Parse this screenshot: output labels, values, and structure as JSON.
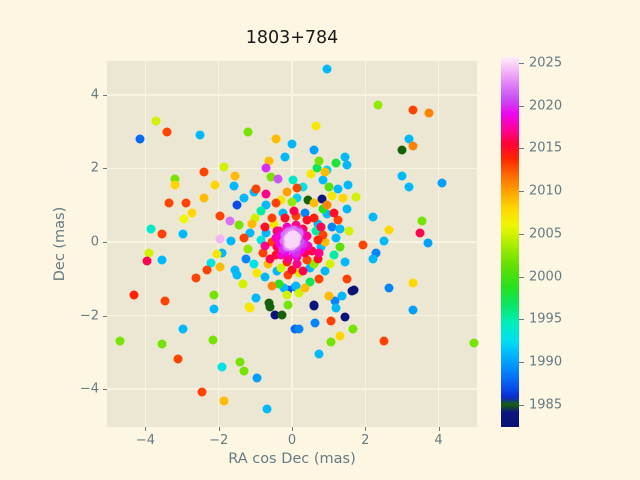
{
  "figure": {
    "title": "1803+784",
    "background": "#fdf6e3",
    "axes_background": "#ece7d2",
    "grid_color": "#f9f3e2",
    "text_color": "#657b83",
    "title_color": "#1a1a1a",
    "tick_color": "#657b83"
  },
  "chart_data": {
    "type": "scatter",
    "title": "1803+784",
    "xlabel": "RA cos Dec (mas)",
    "ylabel": "Dec (mas)",
    "xlim": [
      -5.05,
      5.05
    ],
    "ylim": [
      -5.03,
      4.92
    ],
    "xticks": [
      -4,
      -2,
      0,
      2,
      4
    ],
    "yticks": [
      -4,
      -2,
      0,
      2,
      4
    ],
    "grid": true,
    "marker_size_px": 9,
    "points_columns": [
      "ra_cos_dec_mas",
      "dec_mas",
      "epoch_year"
    ],
    "colorbar": {
      "vmin": 1982.4,
      "vmax": 2025.7,
      "ticks": [
        1985,
        1990,
        1995,
        2000,
        2005,
        2010,
        2015,
        2020,
        2025
      ],
      "stops": [
        {
          "t": 0.0,
          "c": "#0a1173"
        },
        {
          "t": 0.04,
          "c": "#0c1480"
        },
        {
          "t": 0.06,
          "c": "#17600a"
        },
        {
          "t": 0.08,
          "c": "#0a2acc"
        },
        {
          "t": 0.1,
          "c": "#0846e8"
        },
        {
          "t": 0.14,
          "c": "#0677fa"
        },
        {
          "t": 0.19,
          "c": "#00b0ff"
        },
        {
          "t": 0.235,
          "c": "#00e0f0"
        },
        {
          "t": 0.28,
          "c": "#00eebb"
        },
        {
          "t": 0.33,
          "c": "#0ae665"
        },
        {
          "t": 0.38,
          "c": "#28e01e"
        },
        {
          "t": 0.44,
          "c": "#66e000"
        },
        {
          "t": 0.5,
          "c": "#b4ee00"
        },
        {
          "t": 0.545,
          "c": "#eef600"
        },
        {
          "t": 0.59,
          "c": "#ffd800"
        },
        {
          "t": 0.635,
          "c": "#ffa300"
        },
        {
          "t": 0.68,
          "c": "#ff6a00"
        },
        {
          "t": 0.725,
          "c": "#ff2600"
        },
        {
          "t": 0.765,
          "c": "#ff0336"
        },
        {
          "t": 0.805,
          "c": "#ff0398"
        },
        {
          "t": 0.845,
          "c": "#ee04ee"
        },
        {
          "t": 0.885,
          "c": "#c94cf2"
        },
        {
          "t": 0.925,
          "c": "#dd7ef7"
        },
        {
          "t": 0.962,
          "c": "#f3b6f6"
        },
        {
          "t": 1.0,
          "c": "#fdeffb"
        }
      ]
    },
    "points": [
      [
        -3.7,
        3.3,
        2005
      ],
      [
        -3.4,
        3.0,
        2013
      ],
      [
        -4.15,
        2.8,
        1988
      ],
      [
        -2.5,
        2.9,
        1991
      ],
      [
        -1.2,
        3.0,
        2002
      ],
      [
        -0.45,
        2.8,
        2009
      ],
      [
        0.0,
        2.67,
        1991
      ],
      [
        -0.2,
        2.3,
        1991
      ],
      [
        -0.62,
        2.2,
        2009
      ],
      [
        -0.72,
        2.0,
        2020
      ],
      [
        -2.4,
        1.9,
        2013
      ],
      [
        -1.85,
        2.05,
        2005
      ],
      [
        -1.55,
        1.8,
        2009
      ],
      [
        -3.2,
        1.7,
        2002
      ],
      [
        0.95,
        4.7,
        1991
      ],
      [
        2.35,
        3.73,
        2003
      ],
      [
        3.3,
        3.6,
        2013
      ],
      [
        3.75,
        3.5,
        2011
      ],
      [
        0.65,
        3.15,
        2007
      ],
      [
        3.2,
        2.8,
        1991
      ],
      [
        3.0,
        2.5,
        1985
      ],
      [
        3.3,
        2.6,
        2011
      ],
      [
        0.6,
        2.5,
        1990
      ],
      [
        0.75,
        2.2,
        2002
      ],
      [
        1.2,
        2.15,
        1998
      ],
      [
        1.5,
        2.1,
        1991
      ],
      [
        1.45,
        2.3,
        1991
      ],
      [
        0.52,
        1.84,
        2007
      ],
      [
        0.9,
        1.9,
        2009
      ],
      [
        0.95,
        1.96,
        1992
      ],
      [
        0.68,
        2.01,
        1997
      ],
      [
        0.85,
        1.69,
        1991
      ],
      [
        3.0,
        1.8,
        1991
      ],
      [
        4.1,
        1.6,
        1990
      ],
      [
        -3.2,
        1.55,
        2008
      ],
      [
        -2.1,
        1.55,
        2008
      ],
      [
        -3.37,
        1.05,
        2013
      ],
      [
        -2.9,
        1.07,
        2013
      ],
      [
        -2.4,
        1.2,
        2009
      ],
      [
        -2.95,
        0.62,
        2006
      ],
      [
        -2.74,
        0.78,
        2008
      ],
      [
        -1.97,
        0.7,
        2013
      ],
      [
        -1.7,
        0.57,
        2022
      ],
      [
        -3.84,
        0.35,
        1994
      ],
      [
        -3.56,
        0.22,
        2013
      ],
      [
        -2.97,
        0.22,
        1991
      ],
      [
        -1.97,
        0.08,
        2024
      ],
      [
        -1.67,
        0.03,
        1991
      ],
      [
        -3.9,
        -0.3,
        2005
      ],
      [
        -3.97,
        -0.52,
        2016
      ],
      [
        -3.56,
        -0.5,
        1991
      ],
      [
        -2.05,
        -0.32,
        2007
      ],
      [
        -1.9,
        -0.3,
        1991
      ],
      [
        -2.2,
        -0.57,
        1993
      ],
      [
        -1.97,
        -0.68,
        2009
      ],
      [
        -2.33,
        -0.77,
        2013
      ],
      [
        -1.56,
        -0.77,
        1991
      ],
      [
        -2.63,
        -0.99,
        2013
      ],
      [
        -4.3,
        -1.45,
        2014
      ],
      [
        -3.47,
        -1.6,
        2013
      ],
      [
        -2.13,
        -1.43,
        2002
      ],
      [
        3.2,
        1.5,
        1991
      ],
      [
        1.75,
        1.22,
        2005
      ],
      [
        2.2,
        0.68,
        1991
      ],
      [
        3.55,
        0.57,
        2002
      ],
      [
        2.65,
        0.33,
        2008
      ],
      [
        3.5,
        0.25,
        2016
      ],
      [
        2.5,
        0.03,
        1991
      ],
      [
        1.95,
        -0.08,
        2013
      ],
      [
        3.7,
        -0.03,
        1990
      ],
      [
        2.3,
        -0.3,
        1989
      ],
      [
        2.2,
        -0.47,
        1991
      ],
      [
        2.65,
        -1.25,
        1989
      ],
      [
        3.3,
        -1.12,
        2008
      ],
      [
        1.7,
        -1.3,
        1983
      ],
      [
        -2.13,
        -1.82,
        1991
      ],
      [
        -1.14,
        -1.8,
        2007
      ],
      [
        -0.6,
        -1.78,
        1985
      ],
      [
        -0.46,
        -1.98,
        1983
      ],
      [
        -0.28,
        -1.98,
        1985
      ],
      [
        0.07,
        -2.37,
        1988
      ],
      [
        -2.98,
        -2.37,
        1991
      ],
      [
        -4.7,
        -2.7,
        2002
      ],
      [
        -3.55,
        -2.78,
        2002
      ],
      [
        -2.16,
        -2.66,
        2002
      ],
      [
        -3.1,
        -3.18,
        2013
      ],
      [
        -1.9,
        -3.4,
        1993
      ],
      [
        -1.42,
        -3.26,
        2002
      ],
      [
        -1.31,
        -3.51,
        2002
      ],
      [
        -0.96,
        -3.7,
        1990
      ],
      [
        -2.46,
        -4.08,
        2013
      ],
      [
        -1.86,
        -4.32,
        2009
      ],
      [
        -0.68,
        -4.54,
        1991
      ],
      [
        0.6,
        -1.75,
        1983
      ],
      [
        1.2,
        -1.8,
        1991
      ],
      [
        3.3,
        -1.85,
        1990
      ],
      [
        1.45,
        -2.05,
        1983
      ],
      [
        1.07,
        -2.15,
        2013
      ],
      [
        0.64,
        -2.2,
        1989
      ],
      [
        0.2,
        -2.37,
        1989
      ],
      [
        1.67,
        -2.37,
        2002
      ],
      [
        1.3,
        -2.55,
        2008
      ],
      [
        1.07,
        -2.72,
        2002
      ],
      [
        2.5,
        -2.7,
        2013
      ],
      [
        4.97,
        -2.75,
        2002
      ],
      [
        0.73,
        -3.05,
        1991
      ],
      [
        -1.58,
        1.52,
        1991
      ],
      [
        -0.38,
        1.71,
        2021
      ],
      [
        -0.57,
        1.77,
        2002
      ],
      [
        -0.98,
        1.44,
        2013
      ],
      [
        -1.31,
        1.2,
        1991
      ],
      [
        -0.71,
        1.3,
        2017
      ],
      [
        0.02,
        1.68,
        1994
      ],
      [
        0.13,
        1.47,
        2013
      ],
      [
        1.26,
        1.44,
        1991
      ],
      [
        1.09,
        1.25,
        2007
      ],
      [
        1.39,
        1.2,
        2008
      ],
      [
        0.82,
        1.17,
        1984
      ],
      [
        1.53,
        1.55,
        1991
      ],
      [
        -0.98,
        -1.52,
        1991
      ],
      [
        -1.17,
        -1.77,
        2005
      ],
      [
        -0.63,
        -1.66,
        1985
      ],
      [
        -0.14,
        -1.44,
        2005
      ],
      [
        -0.11,
        -1.71,
        2002
      ],
      [
        -0.22,
        -1.25,
        1991
      ],
      [
        0.08,
        -1.22,
        1989
      ],
      [
        1.64,
        -1.33,
        1983
      ],
      [
        1.01,
        -1.47,
        2009
      ],
      [
        0.6,
        -1.71,
        1984
      ],
      [
        1.17,
        -1.6,
        1989
      ],
      [
        1.37,
        -1.47,
        1991
      ],
      [
        0.19,
        -1.39,
        2005
      ],
      [
        1.5,
        0.9,
        1991
      ],
      [
        1.55,
        0.3,
        2005
      ],
      [
        1.45,
        -0.55,
        1991
      ],
      [
        1.5,
        -1.0,
        2013
      ],
      [
        -1.5,
        1.0,
        1987
      ],
      [
        -1.45,
        0.45,
        2002
      ],
      [
        -1.5,
        -0.9,
        1991
      ],
      [
        -1.35,
        -1.15,
        2005
      ],
      [
        0.3,
        1.5,
        1993
      ],
      [
        -0.15,
        1.35,
        2010
      ],
      [
        1.0,
        1.5,
        2001
      ],
      [
        -1.05,
        1.35,
        1991
      ],
      [
        0.95,
        0.75,
        1991
      ],
      [
        1.1,
        0.4,
        1989
      ],
      [
        1.2,
        0.1,
        1991
      ],
      [
        1.15,
        -0.35,
        1995
      ],
      [
        0.9,
        -0.8,
        1991
      ],
      [
        0.5,
        -1.1,
        1997
      ],
      [
        0.1,
        -1.2,
        1991
      ],
      [
        -0.35,
        -1.15,
        1999
      ],
      [
        -0.75,
        -0.95,
        1991
      ],
      [
        -1.05,
        -0.6,
        1993
      ],
      [
        -1.2,
        -0.2,
        2003
      ],
      [
        -1.15,
        0.25,
        1991
      ],
      [
        -1.0,
        0.65,
        2005
      ],
      [
        -0.7,
        1.0,
        1991
      ],
      [
        -0.3,
        1.15,
        2007
      ],
      [
        0.15,
        1.2,
        1992
      ],
      [
        0.6,
        1.05,
        2009
      ],
      [
        0.95,
        1.0,
        2011
      ],
      [
        1.25,
        0.6,
        2013
      ],
      [
        1.3,
        -0.15,
        2001
      ],
      [
        1.05,
        -0.6,
        2005
      ],
      [
        0.75,
        -1.0,
        2013
      ],
      [
        0.35,
        -1.25,
        2009
      ],
      [
        -0.1,
        -1.3,
        1987
      ],
      [
        -0.55,
        -1.2,
        2011
      ],
      [
        -0.95,
        -0.85,
        2007
      ],
      [
        -1.25,
        -0.45,
        1989
      ],
      [
        -1.3,
        0.1,
        2013
      ],
      [
        -1.1,
        0.5,
        2009
      ],
      [
        -0.85,
        0.85,
        1995
      ],
      [
        -0.45,
        1.05,
        2013
      ],
      [
        0.0,
        1.1,
        2003
      ],
      [
        0.45,
        1.15,
        1985
      ],
      [
        0.85,
        0.9,
        1999
      ],
      [
        1.15,
        0.8,
        2015
      ],
      [
        1.3,
        0.35,
        1991
      ],
      [
        0.7,
        0.5,
        1991
      ],
      [
        0.85,
        0.2,
        2013
      ],
      [
        0.8,
        -0.15,
        1991
      ],
      [
        0.7,
        -0.45,
        2015
      ],
      [
        0.5,
        -0.7,
        1991
      ],
      [
        0.2,
        -0.85,
        2005
      ],
      [
        -0.1,
        -0.9,
        2013
      ],
      [
        -0.4,
        -0.8,
        1991
      ],
      [
        -0.65,
        -0.6,
        2009
      ],
      [
        -0.8,
        -0.3,
        2013
      ],
      [
        -0.85,
        0.05,
        1993
      ],
      [
        -0.75,
        0.4,
        2015
      ],
      [
        -0.55,
        0.65,
        2013
      ],
      [
        -0.25,
        0.8,
        1991
      ],
      [
        0.05,
        0.85,
        2016
      ],
      [
        0.35,
        0.8,
        1989
      ],
      [
        0.6,
        0.65,
        2014
      ],
      [
        0.8,
        0.4,
        2016
      ],
      [
        0.9,
        0.0,
        2009
      ],
      [
        0.75,
        -0.3,
        2017
      ],
      [
        0.6,
        -0.6,
        2003
      ],
      [
        0.3,
        -0.8,
        2016
      ],
      [
        0.0,
        -0.75,
        2015
      ],
      [
        -0.3,
        -0.7,
        2005
      ],
      [
        -0.6,
        -0.45,
        2016
      ],
      [
        -0.75,
        -0.1,
        2017
      ],
      [
        -0.7,
        0.25,
        1991
      ],
      [
        -0.5,
        0.5,
        2007
      ],
      [
        -0.2,
        0.65,
        2015
      ],
      [
        0.1,
        0.7,
        2013
      ],
      [
        0.4,
        0.6,
        2015
      ],
      [
        0.65,
        0.3,
        1995
      ],
      [
        0.7,
        0.05,
        2014
      ],
      [
        0.55,
        -0.25,
        2016
      ],
      [
        0.4,
        -0.5,
        2013
      ],
      [
        0.15,
        -0.6,
        2017
      ],
      [
        -0.15,
        -0.55,
        2014
      ],
      [
        -0.45,
        -0.35,
        2015
      ],
      [
        -0.55,
        0.0,
        2013
      ],
      [
        -0.4,
        0.3,
        2016
      ],
      [
        0.3,
        0.35,
        2016
      ],
      [
        0.42,
        0.15,
        2017
      ],
      [
        0.45,
        -0.1,
        2018
      ],
      [
        0.35,
        -0.3,
        2016
      ],
      [
        0.15,
        -0.42,
        2018
      ],
      [
        -0.1,
        -0.45,
        2017
      ],
      [
        -0.3,
        -0.35,
        2018
      ],
      [
        -0.42,
        -0.15,
        2016
      ],
      [
        -0.45,
        0.1,
        2018
      ],
      [
        -0.35,
        0.3,
        2017
      ],
      [
        -0.15,
        0.42,
        2018
      ],
      [
        0.1,
        0.45,
        2017
      ],
      [
        0.25,
        0.25,
        2019
      ],
      [
        0.33,
        0.0,
        2019
      ],
      [
        0.25,
        -0.22,
        2019
      ],
      [
        0.05,
        -0.33,
        2019
      ],
      [
        -0.2,
        -0.28,
        2019
      ],
      [
        -0.32,
        -0.05,
        2019
      ],
      [
        -0.28,
        0.18,
        2019
      ],
      [
        -0.08,
        0.32,
        2019
      ],
      [
        0.18,
        0.3,
        2020
      ],
      [
        0.3,
        -0.05,
        2020
      ],
      [
        0.1,
        -0.3,
        2020
      ],
      [
        -0.25,
        -0.2,
        2020
      ],
      [
        -0.05,
        0.3,
        2021
      ],
      [
        0.1,
        0.28,
        2021
      ],
      [
        0.2,
        0.18,
        2021
      ],
      [
        0.22,
        0.0,
        2021
      ],
      [
        0.15,
        -0.15,
        2021
      ],
      [
        0.0,
        -0.2,
        2021
      ],
      [
        -0.15,
        -0.15,
        2022
      ],
      [
        -0.22,
        0.02,
        2022
      ],
      [
        -0.2,
        0.18,
        2022
      ],
      [
        -0.1,
        0.28,
        2022
      ],
      [
        0.05,
        0.32,
        2022
      ],
      [
        0.18,
        0.25,
        2022
      ],
      [
        0.05,
        0.15,
        2023
      ],
      [
        0.12,
        0.05,
        2023
      ],
      [
        0.05,
        -0.08,
        2023
      ],
      [
        -0.08,
        -0.1,
        2023
      ],
      [
        -0.15,
        0.05,
        2023
      ],
      [
        -0.08,
        0.2,
        2023
      ],
      [
        0.0,
        0.25,
        2023
      ],
      [
        0.1,
        0.15,
        2024
      ],
      [
        0.12,
        -0.02,
        2024
      ],
      [
        0.0,
        -0.12,
        2024
      ],
      [
        -0.12,
        -0.05,
        2024
      ],
      [
        -0.12,
        0.12,
        2024
      ],
      [
        0.0,
        0.18,
        2024
      ],
      [
        0.08,
        0.08,
        2024
      ],
      [
        0.05,
        -0.02,
        2025
      ],
      [
        -0.05,
        -0.05,
        2025
      ],
      [
        -0.08,
        0.08,
        2025
      ],
      [
        0.02,
        0.12,
        2025
      ],
      [
        0.08,
        0.0,
        2025
      ],
      [
        0.0,
        0.05,
        2025
      ],
      [
        -0.03,
        0.15,
        2025
      ],
      [
        0.05,
        0.2,
        2025
      ],
      [
        -0.1,
        0.22,
        2021
      ],
      [
        0.15,
        0.1,
        2025
      ],
      [
        -0.02,
        -0.02,
        2025
      ],
      [
        0.03,
        0.03,
        2025
      ],
      [
        0.0,
        0.1,
        2025
      ],
      [
        0.06,
        0.14,
        2025
      ]
    ]
  }
}
